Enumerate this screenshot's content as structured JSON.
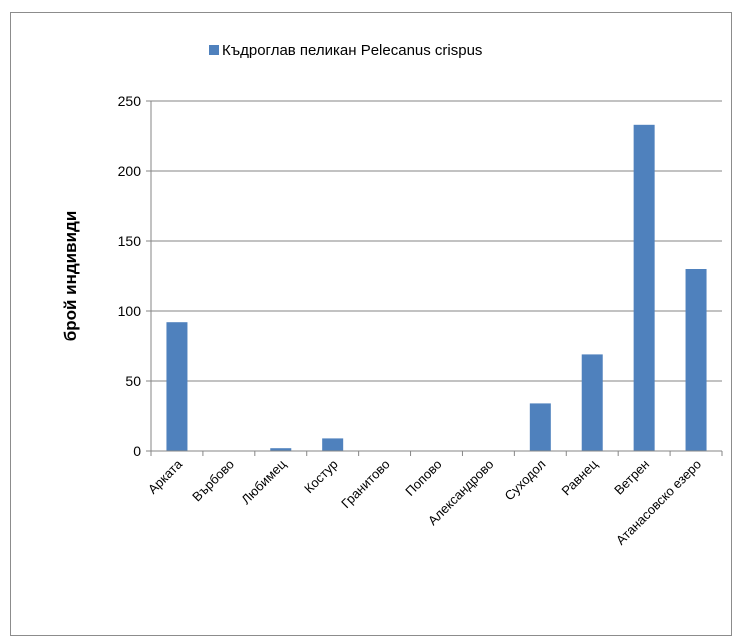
{
  "chart_data": {
    "type": "bar",
    "title": "",
    "xlabel": "",
    "ylabel": "брой индивиди",
    "ylim": [
      0,
      250
    ],
    "yticks": [
      0,
      50,
      100,
      150,
      200,
      250
    ],
    "grid": true,
    "legend_position": "top",
    "categories": [
      "Арката",
      "Върбово",
      "Любимец",
      "Костур",
      "Гранитово",
      "Попово",
      "Александрово",
      "Суходол",
      "Равнец",
      "Ветрен",
      "Атанасовско езеро"
    ],
    "series": [
      {
        "name": "Къдроглав пеликан Pelecanus crispus",
        "color": "#4f81bd",
        "values": [
          92,
          0,
          2,
          9,
          0,
          0,
          0,
          34,
          69,
          233,
          130
        ]
      }
    ]
  }
}
